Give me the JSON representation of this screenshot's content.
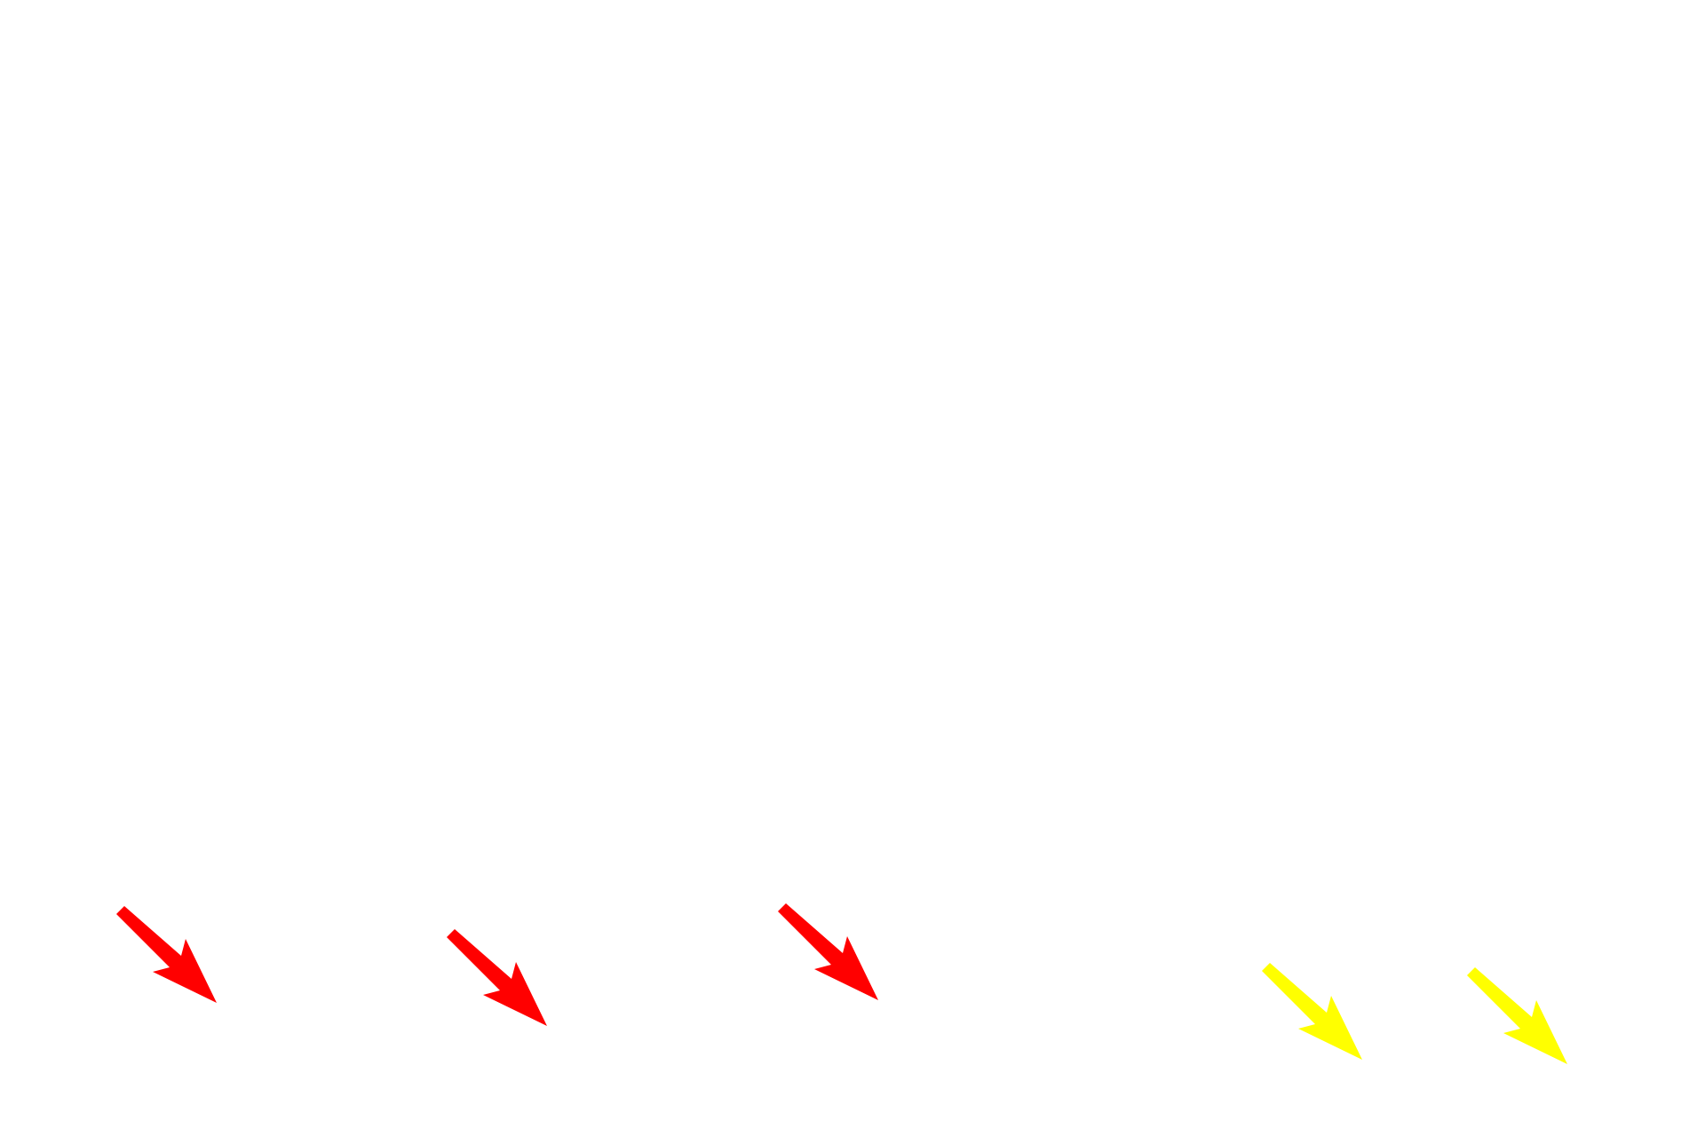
{
  "annotations": {
    "arrows": [
      {
        "icon": "arrow-down-right-icon",
        "color": "#ff0000"
      },
      {
        "icon": "arrow-down-right-icon",
        "color": "#ff0000"
      },
      {
        "icon": "arrow-down-right-icon",
        "color": "#ff0000"
      },
      {
        "icon": "arrow-down-right-icon",
        "color": "#ffff00"
      },
      {
        "icon": "arrow-down-right-icon",
        "color": "#ffff00"
      }
    ]
  }
}
